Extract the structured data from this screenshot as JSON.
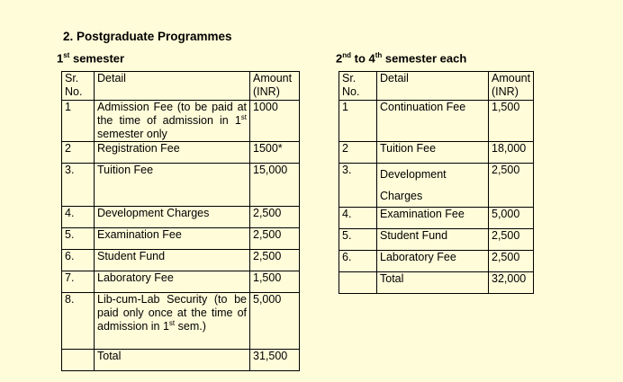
{
  "heading": "2. Postgraduate Programmes",
  "first_semester": {
    "title_num": "1",
    "title_sup": "st",
    "title_rest": " semester",
    "header": {
      "sr": "Sr. No.",
      "detail": "Detail",
      "amount": "Amount (INR)"
    },
    "rows": [
      {
        "sr": "1",
        "detail": "Admission Fee (to be paid at the time of admission in ",
        "detail_sup_num": "1",
        "detail_sup": "st",
        "detail_tail": " semester only",
        "amount": "1000"
      },
      {
        "sr": "2",
        "detail": "Registration Fee",
        "amount": "1500*"
      },
      {
        "sr": "3.",
        "detail": "Tuition Fee",
        "amount": "15,000"
      },
      {
        "sr": "4.",
        "detail": "Development Charges",
        "amount": "2,500"
      },
      {
        "sr": "5.",
        "detail": "Examination Fee",
        "amount": "2,500"
      },
      {
        "sr": "6.",
        "detail": "Student Fund",
        "amount": "2,500"
      },
      {
        "sr": "7.",
        "detail": "Laboratory Fee",
        "amount": "1,500"
      },
      {
        "sr": "8.",
        "detail": "Lib-cum-Lab Security (to be paid only once at the time of admission in 1",
        "detail_sup": "st",
        "detail_tail": " sem.)",
        "amount": "5,000"
      },
      {
        "sr": "",
        "detail": "Total",
        "amount": "31,500"
      }
    ]
  },
  "later_semesters": {
    "title_a": "2",
    "title_a_sup": "nd",
    "title_mid": " to 4",
    "title_b_sup": "th",
    "title_rest": " semester each",
    "header": {
      "sr": "Sr. No.",
      "detail": "Detail",
      "amount": "Amount (INR)"
    },
    "rows": [
      {
        "sr": "1",
        "detail": "Continuation Fee",
        "amount": "1,500"
      },
      {
        "sr": "2",
        "detail": "Tuition Fee",
        "amount": "18,000"
      },
      {
        "sr": "3.",
        "detail": "Development Charges",
        "amount": "2,500"
      },
      {
        "sr": "4.",
        "detail": "Examination Fee",
        "amount": "5,000"
      },
      {
        "sr": "5.",
        "detail": "Student Fund",
        "amount": "2,500"
      },
      {
        "sr": "6.",
        "detail": "Laboratory Fee",
        "amount": "2,500"
      },
      {
        "sr": "",
        "detail": "Total",
        "amount": "32,000"
      }
    ]
  }
}
